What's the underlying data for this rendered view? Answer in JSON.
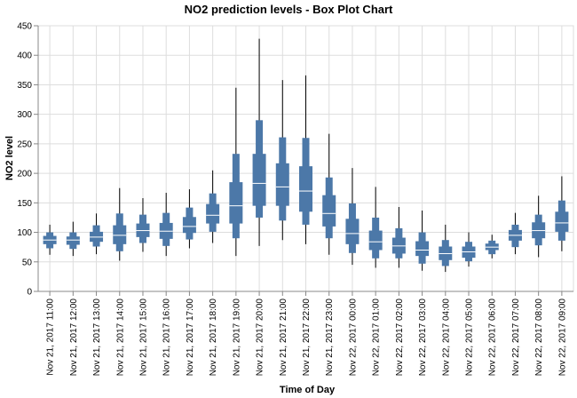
{
  "chart_data": {
    "type": "box",
    "title": "NO2 prediction levels - Box Plot Chart",
    "xlabel": "Time of Day",
    "ylabel": "NO2 level",
    "ylim": [
      0,
      450
    ],
    "yticks": [
      0,
      50,
      100,
      150,
      200,
      250,
      300,
      350,
      400,
      450
    ],
    "grid": true,
    "color": "#4c78a8",
    "median_color": "#ffffff",
    "whisker_color": "#000000",
    "categories": [
      "Nov 21, 2017 11:00",
      "Nov 21, 2017 12:00",
      "Nov 21, 2017 13:00",
      "Nov 21, 2017 14:00",
      "Nov 21, 2017 15:00",
      "Nov 21, 2017 16:00",
      "Nov 21, 2017 17:00",
      "Nov 21, 2017 18:00",
      "Nov 21, 2017 19:00",
      "Nov 21, 2017 20:00",
      "Nov 21, 2017 21:00",
      "Nov 21, 2017 22:00",
      "Nov 21, 2017 23:00",
      "Nov 22, 2017 00:00",
      "Nov 22, 2017 01:00",
      "Nov 22, 2017 02:00",
      "Nov 22, 2017 03:00",
      "Nov 22, 2017 04:00",
      "Nov 22, 2017 05:00",
      "Nov 22, 2017 06:00",
      "Nov 22, 2017 07:00",
      "Nov 22, 2017 08:00",
      "Nov 22, 2017 09:00"
    ],
    "boxes": [
      {
        "min": 62,
        "p10": 73,
        "q1": 80,
        "median": 87,
        "q3": 94,
        "p90": 100,
        "max": 113
      },
      {
        "min": 60,
        "p10": 72,
        "q1": 79,
        "median": 87,
        "q3": 93,
        "p90": 100,
        "max": 118
      },
      {
        "min": 63,
        "p10": 76,
        "q1": 84,
        "median": 92,
        "q3": 101,
        "p90": 112,
        "max": 132
      },
      {
        "min": 52,
        "p10": 68,
        "q1": 80,
        "median": 95,
        "q3": 112,
        "p90": 132,
        "max": 175
      },
      {
        "min": 67,
        "p10": 82,
        "q1": 92,
        "median": 103,
        "q3": 115,
        "p90": 130,
        "max": 158
      },
      {
        "min": 60,
        "p10": 77,
        "q1": 89,
        "median": 102,
        "q3": 116,
        "p90": 133,
        "max": 167
      },
      {
        "min": 73,
        "p10": 88,
        "q1": 99,
        "median": 110,
        "q3": 126,
        "p90": 142,
        "max": 173
      },
      {
        "min": 82,
        "p10": 101,
        "q1": 115,
        "median": 129,
        "q3": 148,
        "p90": 166,
        "max": 205
      },
      {
        "min": 60,
        "p10": 90,
        "q1": 115,
        "median": 145,
        "q3": 185,
        "p90": 233,
        "max": 345
      },
      {
        "min": 77,
        "p10": 125,
        "q1": 145,
        "median": 183,
        "q3": 233,
        "p90": 290,
        "max": 428
      },
      {
        "min": 87,
        "p10": 120,
        "q1": 145,
        "median": 177,
        "q3": 217,
        "p90": 261,
        "max": 358
      },
      {
        "min": 80,
        "p10": 113,
        "q1": 135,
        "median": 170,
        "q3": 212,
        "p90": 260,
        "max": 366
      },
      {
        "min": 62,
        "p10": 90,
        "q1": 110,
        "median": 132,
        "q3": 163,
        "p90": 193,
        "max": 267
      },
      {
        "min": 45,
        "p10": 65,
        "q1": 80,
        "median": 98,
        "q3": 123,
        "p90": 149,
        "max": 209
      },
      {
        "min": 40,
        "p10": 56,
        "q1": 70,
        "median": 84,
        "q3": 103,
        "p90": 125,
        "max": 177
      },
      {
        "min": 40,
        "p10": 56,
        "q1": 64,
        "median": 77,
        "q3": 91,
        "p90": 107,
        "max": 143
      },
      {
        "min": 35,
        "p10": 47,
        "q1": 60,
        "median": 70,
        "q3": 85,
        "p90": 100,
        "max": 137
      },
      {
        "min": 33,
        "p10": 43,
        "q1": 53,
        "median": 64,
        "q3": 76,
        "p90": 87,
        "max": 113
      },
      {
        "min": 42,
        "p10": 51,
        "q1": 57,
        "median": 67,
        "q3": 76,
        "p90": 84,
        "max": 100
      },
      {
        "min": 56,
        "p10": 63,
        "q1": 70,
        "median": 75,
        "q3": 81,
        "p90": 86,
        "max": 96
      },
      {
        "min": 63,
        "p10": 75,
        "q1": 86,
        "median": 95,
        "q3": 104,
        "p90": 113,
        "max": 133
      },
      {
        "min": 58,
        "p10": 78,
        "q1": 90,
        "median": 103,
        "q3": 117,
        "p90": 130,
        "max": 162
      },
      {
        "min": 68,
        "p10": 86,
        "q1": 101,
        "median": 116,
        "q3": 135,
        "p90": 154,
        "max": 195
      }
    ]
  }
}
